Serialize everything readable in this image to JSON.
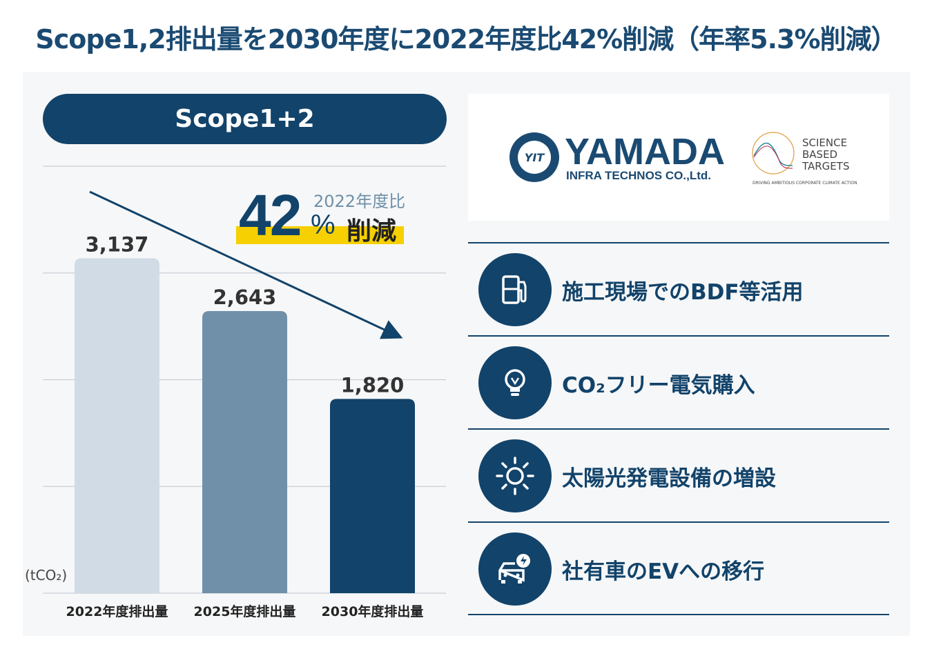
{
  "title": "Scope1,2排出量を2030年度に2022年度比42%削減（年率5.3%削減）",
  "pill": "Scope1+2",
  "unit": "(tCO₂)",
  "badge": {
    "big": "42",
    "base": "2022年度比",
    "pct": "%",
    "cut": "削減"
  },
  "logos": {
    "company_name": "YAMADA",
    "company_sub": "INFRA TECHNOS CO.,Ltd.",
    "seal_text": "YAMADA INFRA TECHNOS CO.,LTD.",
    "seal_mark": "YIT",
    "sbti_lines": [
      "SCIENCE",
      "BASED",
      "TARGETS"
    ],
    "sbti_tag": "DRIVING AMBITIOUS CORPORATE CLIMATE ACTION"
  },
  "initiatives": [
    {
      "icon": "fuel-pump-icon",
      "label": "施工現場でのBDF等活用"
    },
    {
      "icon": "lightbulb-icon",
      "label": "CO₂フリー電気購入"
    },
    {
      "icon": "sun-icon",
      "label": "太陽光発電設備の増設"
    },
    {
      "icon": "ev-car-icon",
      "label": "社有車のEVへの移行"
    }
  ],
  "colors": {
    "navy": "#12436a",
    "mid": "#6f90a8",
    "light": "#d0dbe5",
    "yellow": "#f6d000"
  },
  "chart_data": {
    "type": "bar",
    "categories": [
      "2022年度排出量",
      "2025年度排出量",
      "2030年度排出量"
    ],
    "values": [
      3137,
      2643,
      1820
    ],
    "value_labels": [
      "3,137",
      "2,643",
      "1,820"
    ],
    "ylabel": "(tCO₂)",
    "ylim": [
      0,
      4000
    ],
    "grid": true,
    "annotation": "42% 削減 2022年度比"
  }
}
